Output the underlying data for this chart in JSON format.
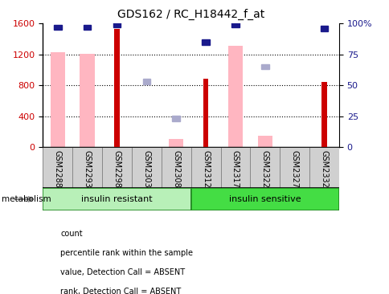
{
  "title": "GDS162 / RC_H18442_f_at",
  "samples": [
    "GSM2288",
    "GSM2293",
    "GSM2298",
    "GSM2303",
    "GSM2308",
    "GSM2312",
    "GSM2317",
    "GSM2322",
    "GSM2327",
    "GSM2332"
  ],
  "red_bars": [
    0,
    0,
    1530,
    0,
    0,
    880,
    0,
    0,
    0,
    840
  ],
  "pink_bars": [
    1230,
    1210,
    0,
    0,
    100,
    0,
    1310,
    150,
    0,
    0
  ],
  "blue_sq_pct": [
    97,
    97,
    99,
    0,
    0,
    85,
    99,
    0,
    0,
    96
  ],
  "blue_sq_show": [
    true,
    true,
    true,
    false,
    false,
    true,
    true,
    false,
    false,
    true
  ],
  "lav_sq_pct": [
    0,
    0,
    0,
    53,
    23,
    0,
    0,
    65,
    0,
    0
  ],
  "lav_sq_show": [
    false,
    false,
    false,
    true,
    true,
    false,
    false,
    true,
    false,
    false
  ],
  "ylim_left": [
    0,
    1600
  ],
  "ylim_right": [
    0,
    100
  ],
  "yticks_left": [
    0,
    400,
    800,
    1200,
    1600
  ],
  "yticks_right": [
    0,
    25,
    50,
    75,
    100
  ],
  "hlines": [
    400,
    800,
    1200
  ],
  "red_color": "#cc0000",
  "pink_color": "#ffb6c1",
  "blue_color": "#1a1a8c",
  "lavender_color": "#aaaacc",
  "group_light": "#b8f0b8",
  "group_dark": "#44dd44",
  "group_border": "#228822",
  "xtick_box_color": "#d0d0d0",
  "xtick_border_color": "#888888",
  "legend_labels": [
    "count",
    "percentile rank within the sample",
    "value, Detection Call = ABSENT",
    "rank, Detection Call = ABSENT"
  ],
  "legend_colors": [
    "#cc0000",
    "#1a1a8c",
    "#ffb6c1",
    "#aaaacc"
  ]
}
